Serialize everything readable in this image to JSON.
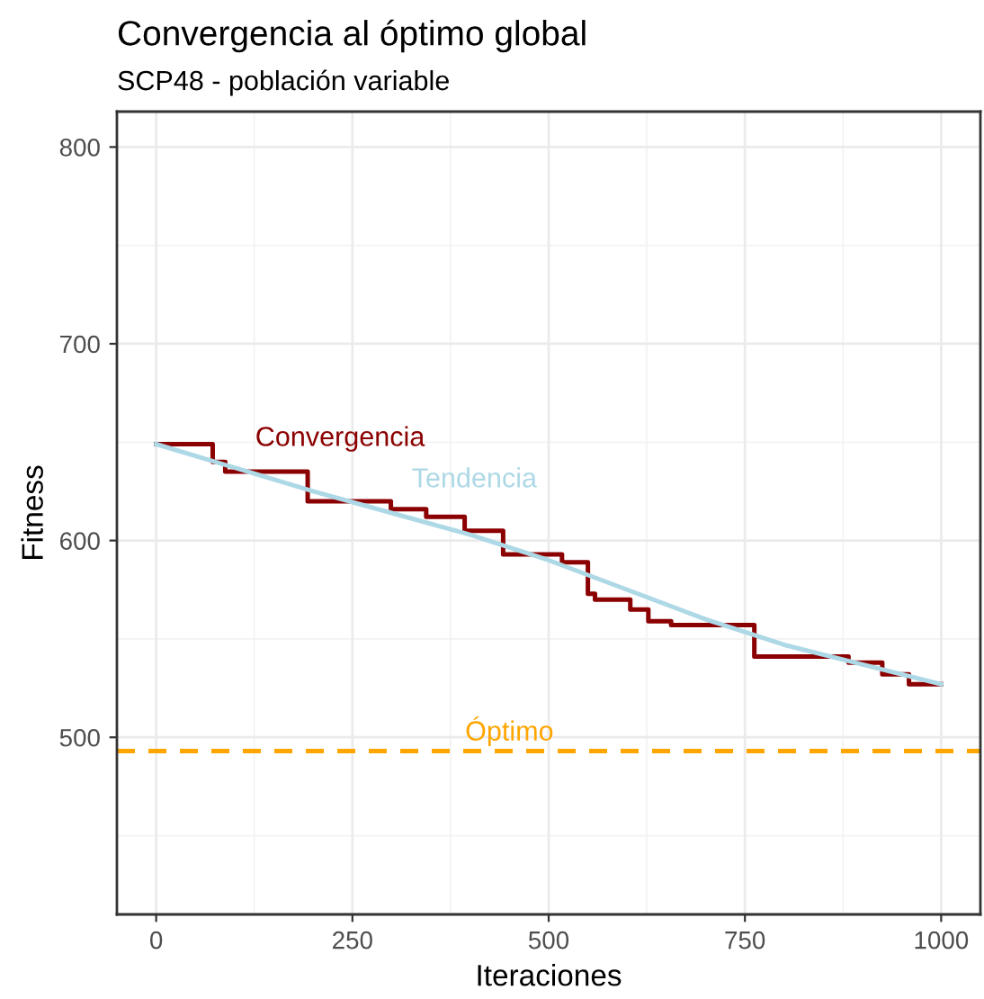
{
  "chart_data": {
    "type": "step",
    "title": "Convergencia al óptimo global",
    "subtitle": "SCP48 - población variable",
    "xlabel": "Iteraciones",
    "ylabel": "Fitness",
    "series": [
      {
        "name": "Convergencia",
        "color": "#8b0000",
        "x": [
          0,
          72,
          88,
          193,
          299,
          344,
          393,
          442,
          517,
          550,
          559,
          604,
          627,
          656,
          762,
          882,
          925,
          959,
          1000
        ],
        "values": [
          649,
          640,
          635,
          620,
          616,
          612,
          605,
          593,
          589,
          573,
          570,
          565,
          559,
          557,
          541,
          538,
          532,
          527,
          527
        ]
      },
      {
        "name": "Tendencia",
        "type": "line",
        "color": "#add8e6",
        "x": [
          0,
          100,
          200,
          300,
          400,
          500,
          600,
          700,
          800,
          900,
          1000
        ],
        "values": [
          649,
          637,
          625,
          614,
          603,
          590,
          575,
          560,
          547,
          537,
          527
        ]
      }
    ],
    "ref_lines": [
      {
        "axis": "y",
        "value": 493,
        "label": "Óptimo",
        "color": "#ffa500",
        "line_style": "dashed"
      }
    ],
    "xlim": [
      -50,
      1050
    ],
    "ylim": [
      410,
      818
    ],
    "xticks": [
      0,
      250,
      500,
      750,
      1000
    ],
    "yticks": [
      500,
      600,
      700,
      800
    ],
    "grid": true,
    "legend": false
  }
}
